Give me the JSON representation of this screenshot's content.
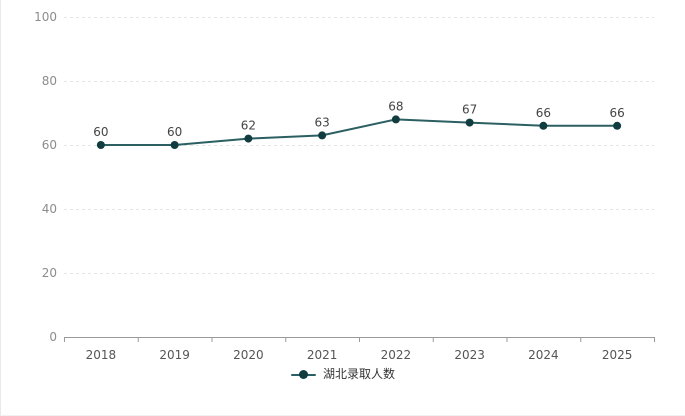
{
  "chart_data": {
    "type": "line",
    "title": "",
    "xlabel": "",
    "ylabel": "",
    "categories": [
      "2018",
      "2019",
      "2020",
      "2021",
      "2022",
      "2023",
      "2024",
      "2025"
    ],
    "series": [
      {
        "name": "湖北录取人数",
        "values": [
          60,
          60,
          62,
          63,
          68,
          67,
          66,
          66
        ]
      }
    ],
    "ylim": [
      0,
      100
    ],
    "y_ticks": [
      0,
      20,
      40,
      60,
      80,
      100
    ],
    "grid": "horizontal dashed gridlines on",
    "data_labels": true,
    "legend_position": "bottom-center",
    "marker": "filled circle on line"
  },
  "colors": {
    "line": "#2b5f61",
    "point": "#123d40",
    "data_label": "#444444",
    "axis_label_y": "#8c8c8c",
    "axis_label_x": "#555555",
    "grid_line": "#e4e4e4",
    "axis_line": "#999999",
    "legend_text": "#333333",
    "background": "#ffffff",
    "card_border": "#e9e9e9"
  },
  "legend": {
    "label": "湖北录取人数"
  }
}
